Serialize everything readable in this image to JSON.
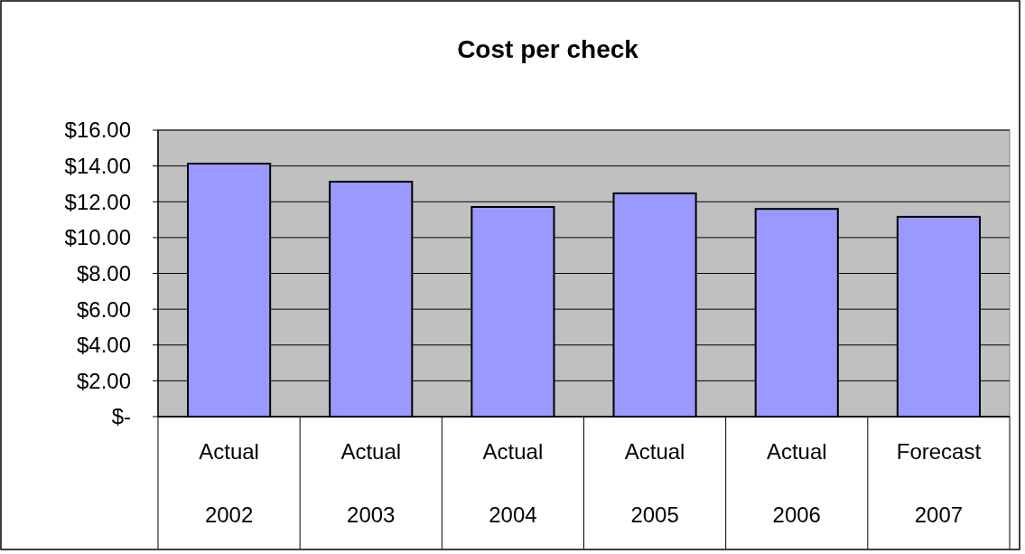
{
  "chart_data": {
    "type": "bar",
    "title": "Cost per check",
    "categories": [
      "Actual\n2002",
      "Actual\n2003",
      "Actual\n2004",
      "Actual\n2005",
      "Actual\n2006",
      "Forecast\n2007"
    ],
    "values": [
      14.13,
      13.12,
      11.71,
      12.47,
      11.6,
      11.16
    ],
    "color": "#9999ff",
    "ylim": [
      0,
      16
    ],
    "yticks": [
      {
        "value": 0,
        "label": "$-"
      },
      {
        "value": 2,
        "label": "$2.00"
      },
      {
        "value": 4,
        "label": "$4.00"
      },
      {
        "value": 6,
        "label": "$6.00"
      },
      {
        "value": 8,
        "label": "$8.00"
      },
      {
        "value": 10,
        "label": "$10.00"
      },
      {
        "value": 12,
        "label": "$12.00"
      },
      {
        "value": 14,
        "label": "$14.00"
      },
      {
        "value": 16,
        "label": "$16.00"
      }
    ],
    "grid": "y"
  }
}
